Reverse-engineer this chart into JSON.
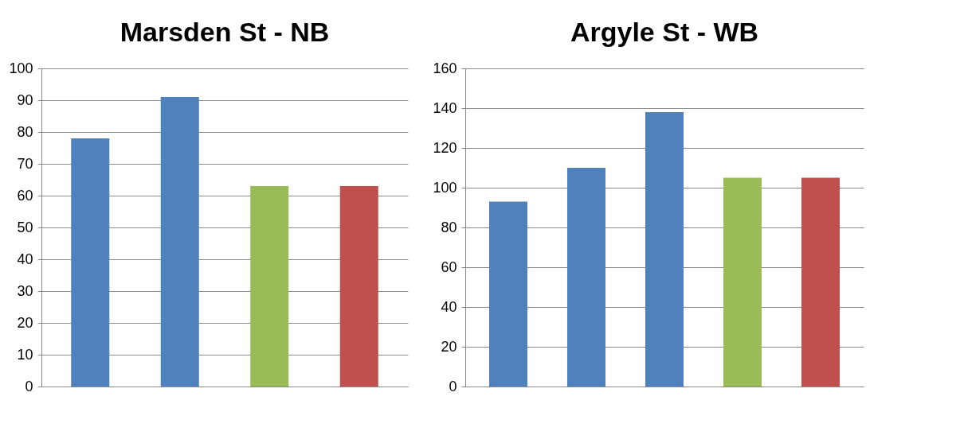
{
  "chart_data": [
    {
      "type": "bar",
      "title": "Marsden St - NB",
      "categories": [
        null,
        null,
        null,
        null
      ],
      "values": [
        78,
        91,
        63,
        63
      ],
      "colors": [
        "#4f81bd",
        "#4f81bd",
        "#9bbb59",
        "#c0504d"
      ],
      "ylim": [
        0,
        100
      ],
      "yticks": [
        0,
        10,
        20,
        30,
        40,
        50,
        60,
        70,
        80,
        90,
        100
      ],
      "grid": "y"
    },
    {
      "type": "bar",
      "title": "Argyle St - WB",
      "categories": [
        null,
        null,
        null,
        null,
        null
      ],
      "values": [
        93,
        110,
        138,
        105,
        105
      ],
      "colors": [
        "#4f81bd",
        "#4f81bd",
        "#4f81bd",
        "#9bbb59",
        "#c0504d"
      ],
      "ylim": [
        0,
        160
      ],
      "yticks": [
        0,
        20,
        40,
        60,
        80,
        100,
        120,
        140,
        160
      ],
      "grid": "y"
    }
  ]
}
